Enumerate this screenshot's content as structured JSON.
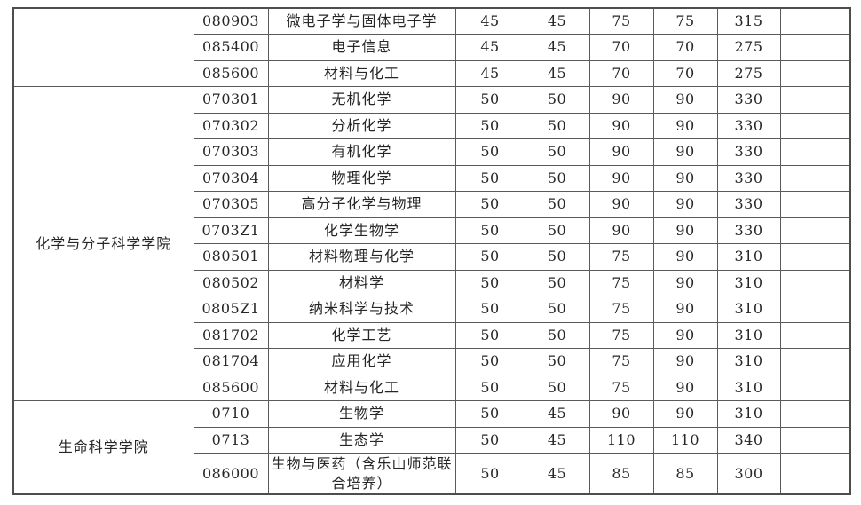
{
  "page": {
    "background_color": "#ffffff",
    "text_color": "#262626",
    "border_color": "#5a5a5a"
  },
  "table": {
    "groups": [
      {
        "college": "",
        "rows": [
          {
            "code": "080903",
            "major": "微电子学与固体电子学",
            "s1": "45",
            "s2": "45",
            "s3": "75",
            "s4": "75",
            "total": "315",
            "note": ""
          },
          {
            "code": "085400",
            "major": "电子信息",
            "s1": "45",
            "s2": "45",
            "s3": "70",
            "s4": "70",
            "total": "275",
            "note": ""
          },
          {
            "code": "085600",
            "major": "材料与化工",
            "s1": "45",
            "s2": "45",
            "s3": "70",
            "s4": "70",
            "total": "275",
            "note": ""
          }
        ]
      },
      {
        "college": "化学与分子科学学院",
        "rows": [
          {
            "code": "070301",
            "major": "无机化学",
            "s1": "50",
            "s2": "50",
            "s3": "90",
            "s4": "90",
            "total": "330",
            "note": ""
          },
          {
            "code": "070302",
            "major": "分析化学",
            "s1": "50",
            "s2": "50",
            "s3": "90",
            "s4": "90",
            "total": "330",
            "note": ""
          },
          {
            "code": "070303",
            "major": "有机化学",
            "s1": "50",
            "s2": "50",
            "s3": "90",
            "s4": "90",
            "total": "330",
            "note": ""
          },
          {
            "code": "070304",
            "major": "物理化学",
            "s1": "50",
            "s2": "50",
            "s3": "90",
            "s4": "90",
            "total": "330",
            "note": ""
          },
          {
            "code": "070305",
            "major": "高分子化学与物理",
            "s1": "50",
            "s2": "50",
            "s3": "90",
            "s4": "90",
            "total": "330",
            "note": ""
          },
          {
            "code": "0703Z1",
            "major": "化学生物学",
            "s1": "50",
            "s2": "50",
            "s3": "90",
            "s4": "90",
            "total": "330",
            "note": ""
          },
          {
            "code": "080501",
            "major": "材料物理与化学",
            "s1": "50",
            "s2": "50",
            "s3": "75",
            "s4": "90",
            "total": "310",
            "note": ""
          },
          {
            "code": "080502",
            "major": "材料学",
            "s1": "50",
            "s2": "50",
            "s3": "75",
            "s4": "90",
            "total": "310",
            "note": ""
          },
          {
            "code": "0805Z1",
            "major": "纳米科学与技术",
            "s1": "50",
            "s2": "50",
            "s3": "75",
            "s4": "90",
            "total": "310",
            "note": ""
          },
          {
            "code": "081702",
            "major": "化学工艺",
            "s1": "50",
            "s2": "50",
            "s3": "75",
            "s4": "90",
            "total": "310",
            "note": ""
          },
          {
            "code": "081704",
            "major": "应用化学",
            "s1": "50",
            "s2": "50",
            "s3": "75",
            "s4": "90",
            "total": "310",
            "note": ""
          },
          {
            "code": "085600",
            "major": "材料与化工",
            "s1": "50",
            "s2": "50",
            "s3": "75",
            "s4": "90",
            "total": "310",
            "note": ""
          }
        ]
      },
      {
        "college": "生命科学学院",
        "rows": [
          {
            "code": "0710",
            "major": "生物学",
            "s1": "50",
            "s2": "45",
            "s3": "90",
            "s4": "90",
            "total": "310",
            "note": ""
          },
          {
            "code": "0713",
            "major": "生态学",
            "s1": "50",
            "s2": "45",
            "s3": "110",
            "s4": "110",
            "total": "340",
            "note": ""
          },
          {
            "code": "086000",
            "major": "生物与医药（含乐山师范联合培养）",
            "s1": "50",
            "s2": "45",
            "s3": "85",
            "s4": "85",
            "total": "300",
            "note": ""
          }
        ]
      }
    ]
  }
}
